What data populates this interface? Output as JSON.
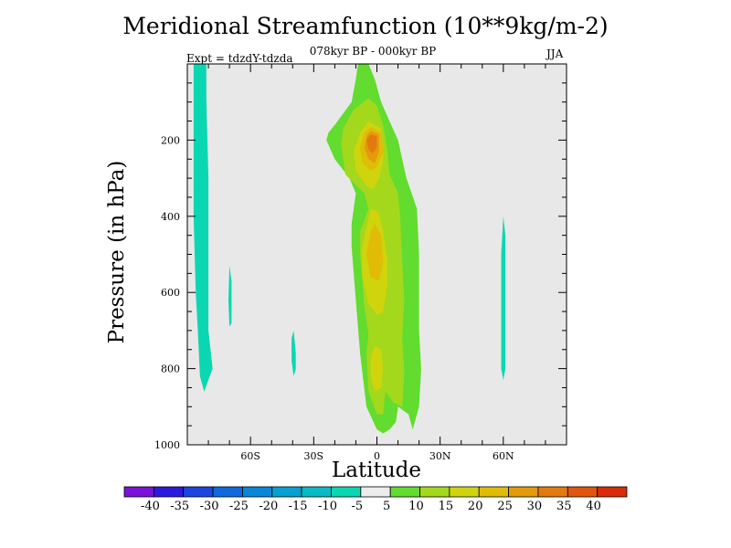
{
  "title": "Meridional Streamfunction (10**9kg/m-2)",
  "subtitle": "078kyr BP - 000kyr BP",
  "experiment_label": "Expt = tdzdY-tdzda",
  "season": "JJA",
  "chart_data": {
    "type": "contour",
    "title": "Meridional Streamfunction (10**9kg/m-2)",
    "xlabel": "Latitude",
    "ylabel": "Pressure (in hPa)",
    "xlim": [
      -90,
      90
    ],
    "ylim": [
      1000,
      0
    ],
    "x_ticks": [
      {
        "value": -60,
        "label": "60S"
      },
      {
        "value": -30,
        "label": "30S"
      },
      {
        "value": 0,
        "label": "0"
      },
      {
        "value": 30,
        "label": "30N"
      },
      {
        "value": 60,
        "label": "60N"
      }
    ],
    "y_ticks": [
      {
        "value": 200,
        "label": "200"
      },
      {
        "value": 400,
        "label": "400"
      },
      {
        "value": 600,
        "label": "600"
      },
      {
        "value": 800,
        "label": "800"
      },
      {
        "value": 1000,
        "label": "1000"
      }
    ],
    "background_level": "-5 to 5",
    "colorbar": {
      "labels": [
        "-40",
        "-35",
        "-30",
        "-25",
        "-20",
        "-15",
        "-10",
        "-5",
        "5",
        "10",
        "15",
        "20",
        "25",
        "30",
        "35",
        "40"
      ],
      "colors": [
        "#7b12d8",
        "#2a1adf",
        "#1c46e0",
        "#1168dc",
        "#0a86d9",
        "#07a0d2",
        "#07bcc8",
        "#0ad7b2",
        "#ececec",
        "#62dc2e",
        "#a3d81c",
        "#cfd40d",
        "#e0bc07",
        "#e39b0c",
        "#e37a0f",
        "#e0560d",
        "#d92b0b"
      ]
    },
    "regions": [
      {
        "level": "-10 to -5",
        "color": "#0ad7b2",
        "points": [
          [
            -87,
            0
          ],
          [
            -81,
            0
          ],
          [
            -81,
            90
          ],
          [
            -80,
            300
          ],
          [
            -80,
            700
          ],
          [
            -78,
            800
          ],
          [
            -82,
            860
          ],
          [
            -84,
            820
          ],
          [
            -85,
            700
          ],
          [
            -86,
            600
          ],
          [
            -87,
            400
          ],
          [
            -87,
            200
          ]
        ]
      },
      {
        "level": "-10 to -5",
        "color": "#0ad7b2",
        "points": [
          [
            -70,
            530
          ],
          [
            -69,
            570
          ],
          [
            -69,
            680
          ],
          [
            -70,
            690
          ],
          [
            -70.5,
            620
          ]
        ]
      },
      {
        "level": "-10 to -5",
        "color": "#0ad7b2",
        "points": [
          [
            -39.5,
            700
          ],
          [
            -38.5,
            760
          ],
          [
            -38.5,
            800
          ],
          [
            -39.5,
            820
          ],
          [
            -40.5,
            780
          ],
          [
            -40.5,
            720
          ]
        ]
      },
      {
        "level": "-10 to -5",
        "color": "#0ad7b2",
        "points": [
          [
            60,
            400
          ],
          [
            61,
            450
          ],
          [
            61,
            800
          ],
          [
            60,
            830
          ],
          [
            59,
            800
          ],
          [
            59,
            500
          ]
        ]
      },
      {
        "level": "5 to 10",
        "color": "#62dc2e",
        "points": [
          [
            -9,
            0
          ],
          [
            -4,
            0
          ],
          [
            -1,
            40
          ],
          [
            2,
            100
          ],
          [
            6,
            150
          ],
          [
            10,
            200
          ],
          [
            14,
            300
          ],
          [
            19,
            380
          ],
          [
            20,
            500
          ],
          [
            20,
            600
          ],
          [
            20,
            700
          ],
          [
            21,
            800
          ],
          [
            20,
            900
          ],
          [
            17,
            960
          ],
          [
            15,
            920
          ],
          [
            10,
            900
          ],
          [
            9,
            940
          ],
          [
            6,
            960
          ],
          [
            3,
            970
          ],
          [
            0,
            960
          ],
          [
            -5,
            900
          ],
          [
            -8,
            760
          ],
          [
            -10,
            620
          ],
          [
            -12,
            480
          ],
          [
            -12,
            420
          ],
          [
            -10,
            340
          ],
          [
            -13,
            300
          ],
          [
            -20,
            250
          ],
          [
            -24,
            200
          ],
          [
            -23,
            180
          ],
          [
            -20,
            160
          ],
          [
            -16,
            130
          ],
          [
            -12,
            100
          ],
          [
            -10,
            40
          ]
        ]
      },
      {
        "level": "10 to 15",
        "color": "#a3d81c",
        "points": [
          [
            -4,
            90
          ],
          [
            0,
            110
          ],
          [
            3,
            160
          ],
          [
            5,
            230
          ],
          [
            6,
            290
          ],
          [
            10,
            340
          ],
          [
            11,
            400
          ],
          [
            12,
            520
          ],
          [
            13,
            620
          ],
          [
            12,
            720
          ],
          [
            13,
            810
          ],
          [
            12,
            900
          ],
          [
            8,
            890
          ],
          [
            4,
            860
          ],
          [
            3,
            920
          ],
          [
            0,
            920
          ],
          [
            -4,
            860
          ],
          [
            -5,
            760
          ],
          [
            -4,
            710
          ],
          [
            -6,
            640
          ],
          [
            -7,
            560
          ],
          [
            -8,
            500
          ],
          [
            -8,
            440
          ],
          [
            -4,
            380
          ],
          [
            -6,
            340
          ],
          [
            -15,
            290
          ],
          [
            -17,
            210
          ],
          [
            -16,
            170
          ],
          [
            -11,
            120
          ]
        ]
      },
      {
        "level": "15 to 20",
        "color": "#cfd40d",
        "points": [
          [
            -4,
            150
          ],
          [
            2,
            170
          ],
          [
            3,
            220
          ],
          [
            3,
            260
          ],
          [
            1,
            300
          ],
          [
            -2,
            330
          ],
          [
            -5,
            320
          ],
          [
            -10,
            280
          ],
          [
            -11,
            230
          ],
          [
            -8,
            180
          ]
        ]
      },
      {
        "level": "15 to 20",
        "color": "#cfd40d",
        "points": [
          [
            -3,
            380
          ],
          [
            1,
            390
          ],
          [
            3,
            440
          ],
          [
            5,
            520
          ],
          [
            5,
            580
          ],
          [
            3,
            650
          ],
          [
            0,
            660
          ],
          [
            -4,
            630
          ],
          [
            -7,
            560
          ],
          [
            -7,
            480
          ],
          [
            -5,
            430
          ]
        ]
      },
      {
        "level": "15 to 20",
        "color": "#cfd40d",
        "points": [
          [
            -1,
            740
          ],
          [
            2,
            750
          ],
          [
            3,
            800
          ],
          [
            2,
            850
          ],
          [
            -1,
            860
          ],
          [
            -3,
            820
          ],
          [
            -3,
            770
          ]
        ]
      },
      {
        "level": "20 to 25",
        "color": "#e0bc07",
        "points": [
          [
            -3,
            165
          ],
          [
            2,
            180
          ],
          [
            3,
            230
          ],
          [
            0,
            270
          ],
          [
            -3,
            280
          ],
          [
            -7,
            260
          ],
          [
            -8,
            220
          ],
          [
            -6,
            180
          ]
        ]
      },
      {
        "level": "20 to 25",
        "color": "#e0bc07",
        "points": [
          [
            -1,
            420
          ],
          [
            2,
            450
          ],
          [
            3,
            520
          ],
          [
            1,
            570
          ],
          [
            -3,
            560
          ],
          [
            -5,
            500
          ],
          [
            -3,
            440
          ]
        ]
      },
      {
        "level": "25 to 30",
        "color": "#e39b0c",
        "points": [
          [
            -3,
            175
          ],
          [
            1,
            185
          ],
          [
            1,
            230
          ],
          [
            -1,
            260
          ],
          [
            -4,
            250
          ],
          [
            -6,
            220
          ],
          [
            -5,
            190
          ]
        ]
      },
      {
        "level": "30 to 35",
        "color": "#e37a0f",
        "points": [
          [
            -3,
            185
          ],
          [
            0,
            190
          ],
          [
            0,
            220
          ],
          [
            -2,
            235
          ],
          [
            -4,
            225
          ],
          [
            -5,
            200
          ]
        ]
      }
    ]
  }
}
